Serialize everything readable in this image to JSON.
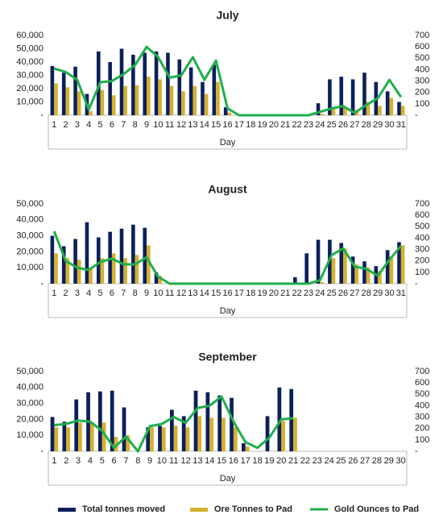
{
  "chart_data": [
    {
      "type": "bar",
      "title": "July",
      "x_label": "Day",
      "categories": [
        "1",
        "2",
        "3",
        "4",
        "5",
        "6",
        "7",
        "8",
        "9",
        "10",
        "11",
        "12",
        "13",
        "14",
        "15",
        "16",
        "17",
        "18",
        "19",
        "20",
        "21",
        "22",
        "23",
        "24",
        "25",
        "26",
        "27",
        "28",
        "29",
        "30",
        "31"
      ],
      "series": [
        {
          "values": [
            37000,
            32000,
            36500,
            16000,
            48000,
            40000,
            50000,
            45500,
            47000,
            48000,
            47000,
            42000,
            36000,
            25000,
            38000,
            6000,
            0,
            0,
            0,
            0,
            0,
            0,
            0,
            9000,
            27000,
            29000,
            27000,
            32000,
            25000,
            18000,
            10000
          ]
        },
        {
          "values": [
            24000,
            21000,
            18000,
            3000,
            19000,
            15000,
            22000,
            22500,
            29000,
            27000,
            22000,
            18000,
            22000,
            16000,
            25000,
            2000,
            0,
            0,
            0,
            0,
            0,
            0,
            0,
            1000,
            5000,
            6000,
            4000,
            10000,
            7000,
            13000,
            7000
          ]
        },
        {
          "values": [
            410,
            380,
            310,
            50,
            290,
            300,
            360,
            440,
            600,
            510,
            330,
            350,
            510,
            310,
            480,
            60,
            0,
            0,
            0,
            0,
            0,
            0,
            0,
            30,
            60,
            80,
            20,
            90,
            150,
            310,
            160
          ],
          "axis": "y2"
        }
      ],
      "ylim": [
        0,
        60000
      ],
      "yticks": [
        {
          "value": 0,
          "label": "-"
        },
        {
          "value": 10000,
          "label": "10,000"
        },
        {
          "value": 20000,
          "label": "20,000"
        },
        {
          "value": 30000,
          "label": "30,000"
        },
        {
          "value": 40000,
          "label": "40,000"
        },
        {
          "value": 50000,
          "label": "50,000"
        },
        {
          "value": 60000,
          "label": "60,000"
        }
      ],
      "y2lim": [
        0,
        700
      ],
      "y2ticks": [
        {
          "value": 0,
          "label": "-"
        },
        100,
        200,
        300,
        400,
        500,
        600,
        700
      ]
    },
    {
      "type": "bar",
      "title": "August",
      "x_label": "Day",
      "categories": [
        "1",
        "2",
        "3",
        "4",
        "5",
        "6",
        "7",
        "8",
        "9",
        "10",
        "11",
        "12",
        "13",
        "14",
        "15",
        "16",
        "17",
        "18",
        "19",
        "20",
        "21",
        "22",
        "23",
        "24",
        "25",
        "26",
        "27",
        "28",
        "29",
        "30",
        "31"
      ],
      "series": [
        {
          "values": [
            30000,
            23500,
            28000,
            38500,
            29000,
            32500,
            34500,
            37000,
            35000,
            7000,
            0,
            0,
            0,
            0,
            0,
            0,
            0,
            0,
            0,
            0,
            0,
            4000,
            19000,
            27500,
            27500,
            25500,
            17000,
            14000,
            11000,
            21000,
            26000
          ]
        },
        {
          "values": [
            19000,
            16000,
            15000,
            10000,
            16000,
            19000,
            16000,
            18000,
            24000,
            5000,
            0,
            0,
            0,
            0,
            0,
            0,
            0,
            0,
            0,
            0,
            0,
            0,
            0,
            1000,
            16000,
            22000,
            12000,
            10000,
            8000,
            17000,
            24000
          ]
        },
        {
          "values": [
            460,
            200,
            140,
            120,
            190,
            220,
            170,
            170,
            230,
            60,
            0,
            0,
            0,
            0,
            0,
            0,
            0,
            0,
            0,
            0,
            0,
            0,
            0,
            30,
            250,
            310,
            150,
            130,
            70,
            210,
            330
          ],
          "axis": "y2"
        }
      ],
      "ylim": [
        0,
        50000
      ],
      "yticks": [
        {
          "value": 0,
          "label": "-"
        },
        {
          "value": 10000,
          "label": "10,000"
        },
        {
          "value": 20000,
          "label": "20,000"
        },
        {
          "value": 30000,
          "label": "30,000"
        },
        {
          "value": 40000,
          "label": "40,000"
        },
        {
          "value": 50000,
          "label": "50,000"
        }
      ],
      "y2lim": [
        0,
        700
      ],
      "y2ticks": [
        {
          "value": 0,
          "label": "-"
        },
        100,
        200,
        300,
        400,
        500,
        600,
        700
      ]
    },
    {
      "type": "bar",
      "title": "September",
      "x_label": "Day",
      "categories": [
        "1",
        "2",
        "3",
        "4",
        "5",
        "6",
        "7",
        "8",
        "9",
        "10",
        "11",
        "12",
        "13",
        "14",
        "15",
        "16",
        "17",
        "18",
        "19",
        "20",
        "21",
        "22",
        "23",
        "24",
        "25",
        "26",
        "27",
        "28",
        "29",
        "30"
      ],
      "series": [
        {
          "values": [
            21500,
            18500,
            32500,
            37000,
            37500,
            38000,
            27500,
            0,
            15000,
            16000,
            26000,
            22000,
            38000,
            37000,
            35000,
            33500,
            5000,
            0,
            22000,
            40000,
            39000,
            null,
            null,
            null,
            null,
            null,
            null,
            null,
            null,
            null
          ]
        },
        {
          "values": [
            15000,
            15000,
            18000,
            18000,
            18000,
            9000,
            10000,
            0,
            15000,
            15000,
            16000,
            15000,
            22000,
            21000,
            21000,
            15000,
            3000,
            0,
            0,
            19000,
            21000,
            null,
            null,
            null,
            null,
            null,
            null,
            null,
            null,
            null
          ]
        },
        {
          "values": [
            230,
            240,
            270,
            260,
            180,
            30,
            130,
            0,
            220,
            240,
            300,
            250,
            380,
            400,
            480,
            260,
            80,
            30,
            120,
            280,
            290,
            null,
            null,
            null,
            null,
            null,
            null,
            null,
            null,
            null
          ],
          "axis": "y2"
        }
      ],
      "ylim": [
        0,
        50000
      ],
      "yticks": [
        {
          "value": 0,
          "label": "-"
        },
        {
          "value": 10000,
          "label": "10,000"
        },
        {
          "value": 20000,
          "label": "20,000"
        },
        {
          "value": 30000,
          "label": "30,000"
        },
        {
          "value": 40000,
          "label": "40,000"
        },
        {
          "value": 50000,
          "label": "50,000"
        }
      ],
      "y2lim": [
        0,
        700
      ],
      "y2ticks": [
        {
          "value": 0,
          "label": "-"
        },
        100,
        200,
        300,
        400,
        500,
        600,
        700
      ]
    }
  ],
  "legend": [
    {
      "name": "Total tonnes moved",
      "color": "#0c1f5b",
      "type": "bar"
    },
    {
      "name": "Ore Tonnes to Pad",
      "color": "#d4b12f",
      "type": "bar"
    },
    {
      "name": "Gold Ounces to Pad",
      "color": "#1fae4b",
      "type": "line"
    }
  ]
}
